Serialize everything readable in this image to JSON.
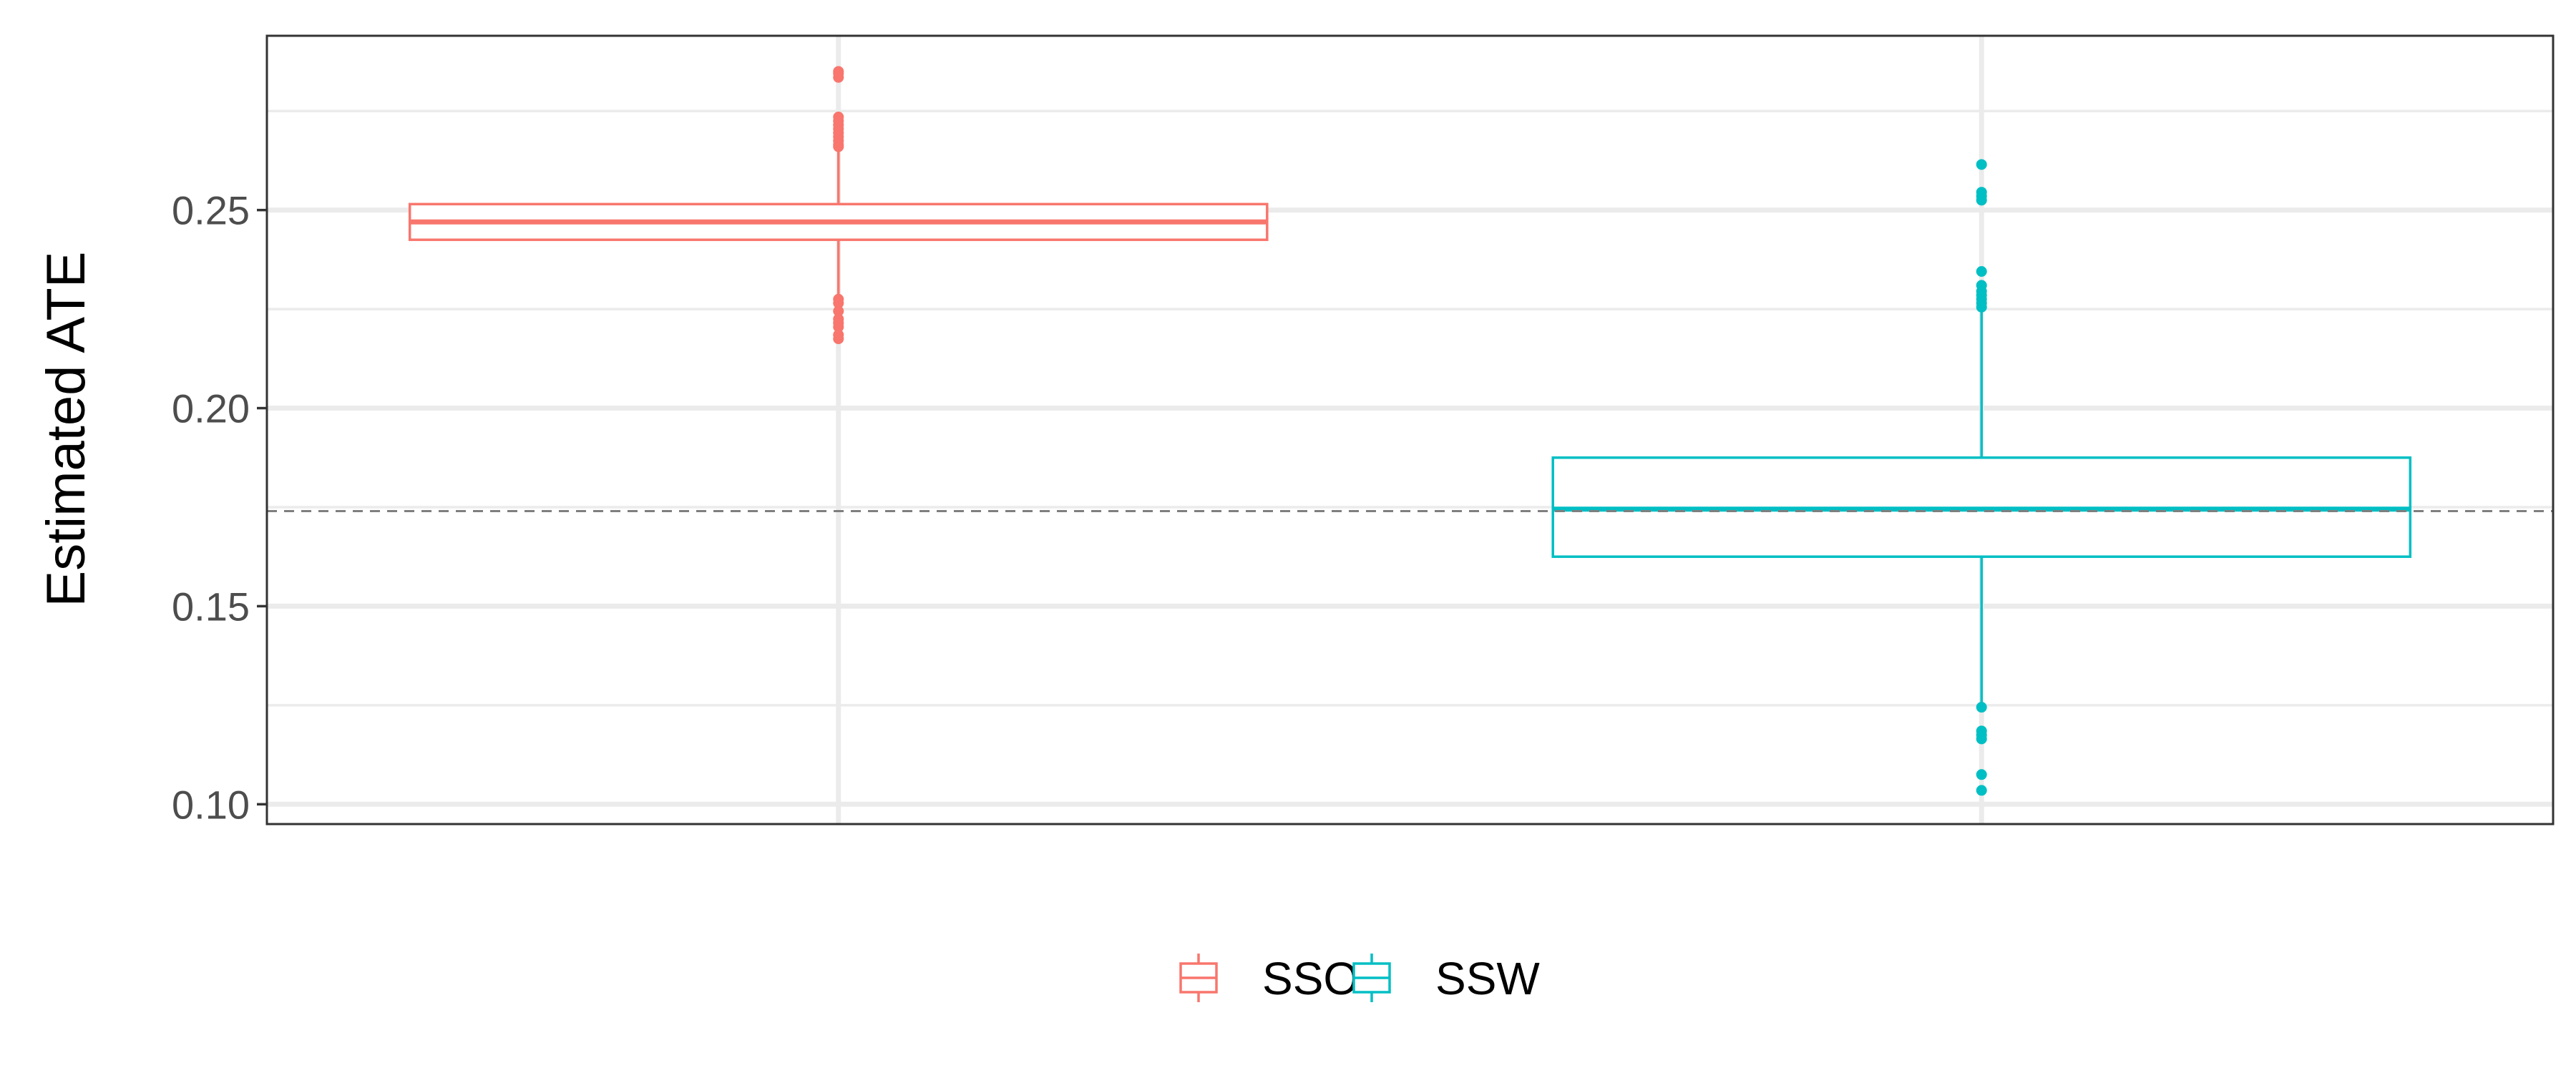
{
  "chart_data": {
    "type": "boxplot",
    "title": "",
    "xlabel": "",
    "ylabel": "Estimated ATE",
    "ylim": [
      0.095,
      0.294
    ],
    "yticks": [
      0.1,
      0.15,
      0.2,
      0.25
    ],
    "ytick_labels": [
      "0.10",
      "0.15",
      "0.20",
      "0.25"
    ],
    "grid": true,
    "legend_position": "bottom",
    "reference_line": {
      "y": 0.174,
      "style": "dashed",
      "color": "#7f7f7f"
    },
    "series": [
      {
        "name": "SSO",
        "color": "#F8766D",
        "q1": 0.2425,
        "median": 0.247,
        "q3": 0.2515,
        "whisker_low": 0.2285,
        "whisker_high": 0.265,
        "outliers": [
          0.2185,
          0.2175,
          0.2205,
          0.2215,
          0.2225,
          0.2245,
          0.2265,
          0.2275,
          0.266,
          0.2665,
          0.2675,
          0.2685,
          0.2695,
          0.2705,
          0.2715,
          0.2725,
          0.2735,
          0.2835,
          0.2845,
          0.285
        ]
      },
      {
        "name": "SSW",
        "color": "#00BFC4",
        "q1": 0.1625,
        "median": 0.1745,
        "q3": 0.1875,
        "whisker_low": 0.125,
        "whisker_high": 0.2245,
        "outliers": [
          0.1035,
          0.1075,
          0.1165,
          0.1175,
          0.1185,
          0.1245,
          0.2255,
          0.2265,
          0.2275,
          0.2285,
          0.2295,
          0.231,
          0.2345,
          0.2525,
          0.2535,
          0.2545,
          0.2615
        ]
      }
    ]
  }
}
